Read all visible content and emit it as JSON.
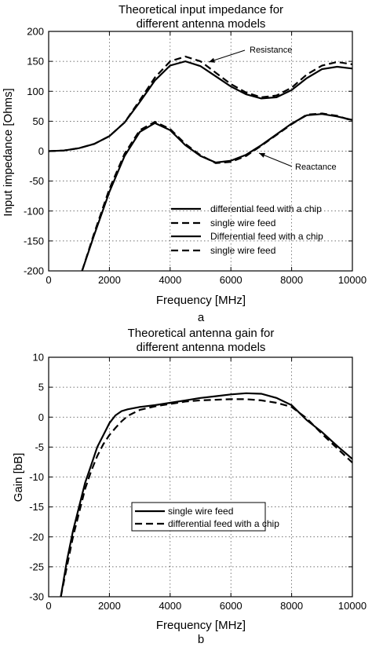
{
  "chart_data": [
    {
      "type": "line",
      "title": [
        "Theoretical input impedance for",
        "different antenna models"
      ],
      "xlabel": "Frequency [MHz]",
      "ylabel": "Input impedance [Ohms]",
      "panel_label": "a",
      "xlim": [
        0,
        10000
      ],
      "ylim": [
        -200,
        200
      ],
      "xticks": [
        0,
        2000,
        4000,
        6000,
        8000,
        10000
      ],
      "yticks": [
        -200,
        -150,
        -100,
        -50,
        0,
        50,
        100,
        150,
        200
      ],
      "grid": true,
      "legend_position": "bottom-right",
      "legend": [
        {
          "label": " differential feed with a chip",
          "style": "solid"
        },
        {
          "label": "single wire feed",
          "style": "dashed"
        },
        {
          "label": "Differential feed with a chip",
          "style": "solid"
        },
        {
          "label": "single wire feed",
          "style": "dashed"
        }
      ],
      "annotations": [
        {
          "text": "Resistance",
          "x": 4900,
          "y": 150
        },
        {
          "text": "Reactance",
          "x": 5900,
          "y": 0
        }
      ],
      "series": [
        {
          "style": "solid",
          "x": [
            0,
            500,
            1000,
            1500,
            2000,
            2500,
            3000,
            3500,
            4000,
            4500,
            5000,
            5500,
            6000,
            6500,
            7000,
            7500,
            8000,
            8500,
            9000,
            9500,
            10000
          ],
          "y": [
            0,
            1,
            5,
            12,
            25,
            48,
            82,
            118,
            143,
            150,
            142,
            125,
            108,
            95,
            88,
            90,
            102,
            122,
            137,
            141,
            138
          ]
        },
        {
          "style": "dashed",
          "x": [
            0,
            500,
            1000,
            1500,
            2000,
            2500,
            3000,
            3500,
            4000,
            4500,
            5000,
            5500,
            6000,
            6500,
            7000,
            7500,
            8000,
            8500,
            9000,
            9500,
            10000
          ],
          "y": [
            0,
            1,
            5,
            12,
            25,
            48,
            85,
            123,
            150,
            158,
            150,
            131,
            112,
            98,
            90,
            93,
            106,
            128,
            143,
            149,
            145
          ]
        },
        {
          "style": "solid",
          "x": [
            1100,
            1500,
            2000,
            2500,
            3000,
            3500,
            4000,
            4500,
            5000,
            5500,
            6000,
            6500,
            7000,
            7500,
            8000,
            8500,
            9000,
            9500,
            10000
          ],
          "y": [
            -200,
            -140,
            -68,
            -8,
            32,
            47,
            35,
            10,
            -8,
            -19,
            -16,
            -6,
            10,
            28,
            46,
            60,
            62,
            58,
            52
          ]
        },
        {
          "style": "dashed",
          "x": [
            1100,
            1500,
            2000,
            2500,
            3000,
            3500,
            4000,
            4500,
            5000,
            5500,
            6000,
            6500,
            7000,
            7500,
            8000,
            8500,
            9000,
            9500,
            10000
          ],
          "y": [
            -200,
            -137,
            -63,
            -4,
            35,
            49,
            37,
            12,
            -7,
            -20,
            -18,
            -8,
            9,
            27,
            45,
            61,
            63,
            59,
            51
          ]
        }
      ]
    },
    {
      "type": "line",
      "title": [
        "Theoretical antenna gain for",
        "different antenna models"
      ],
      "xlabel": "Frequency [MHz]",
      "ylabel": "Gain [bB]",
      "panel_label": "b",
      "xlim": [
        0,
        10000
      ],
      "ylim": [
        -30,
        10
      ],
      "xticks": [
        0,
        2000,
        4000,
        6000,
        8000,
        10000
      ],
      "yticks": [
        -30,
        -25,
        -20,
        -15,
        -10,
        -5,
        0,
        5,
        10
      ],
      "grid": true,
      "legend_position": "lower-center",
      "legend": [
        {
          "label": "single wire feed",
          "style": "solid"
        },
        {
          "label": "differential feed with a chip",
          "style": "dashed"
        }
      ],
      "series": [
        {
          "style": "solid",
          "x": [
            400,
            600,
            800,
            1000,
            1200,
            1400,
            1600,
            1800,
            2000,
            2200,
            2400,
            2600,
            3000,
            3500,
            4000,
            4500,
            5000,
            5500,
            6000,
            6500,
            7000,
            7500,
            8000,
            8500,
            9000,
            9500,
            10000
          ],
          "y": [
            -30,
            -24,
            -19,
            -15,
            -11,
            -8,
            -5,
            -3,
            -1,
            0.3,
            1,
            1.3,
            1.7,
            2,
            2.4,
            2.8,
            3.2,
            3.5,
            3.8,
            4,
            3.9,
            3.2,
            2,
            -0.5,
            -2.5,
            -4.8,
            -7
          ]
        },
        {
          "style": "dashed",
          "x": [
            400,
            600,
            800,
            1000,
            1200,
            1400,
            1600,
            1800,
            2000,
            2200,
            2400,
            2600,
            3000,
            3500,
            4000,
            4500,
            5000,
            5500,
            6000,
            6500,
            7000,
            7500,
            8000,
            8500,
            9000,
            9500,
            10000
          ],
          "y": [
            -30,
            -25,
            -20,
            -16,
            -12,
            -9,
            -6.5,
            -4.5,
            -3,
            -1.8,
            -0.7,
            0.2,
            1.2,
            1.8,
            2.2,
            2.6,
            2.8,
            2.9,
            3,
            3,
            2.8,
            2.4,
            1.7,
            -0.2,
            -2.8,
            -5.2,
            -7.6
          ]
        }
      ]
    }
  ]
}
